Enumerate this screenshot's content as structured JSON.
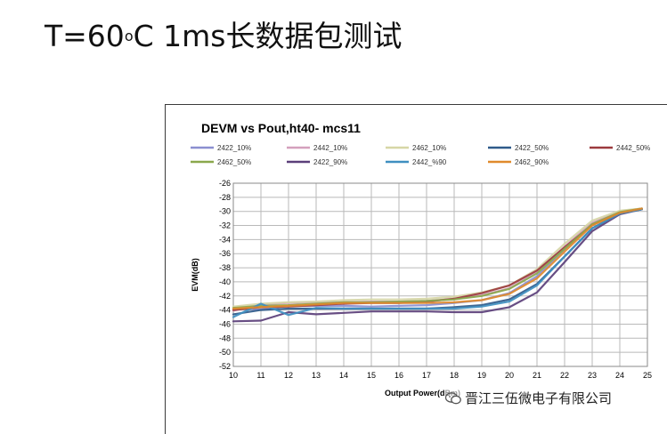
{
  "slide": {
    "title_prefix": "T=60",
    "title_sup": "o",
    "title_suffix": "C 1ms长数据包测试"
  },
  "watermark": {
    "text": "晋江三伍微电子有限公司",
    "icon": "wechat-icon"
  },
  "chart_data": {
    "type": "line",
    "title": "DEVM vs Pout,ht40- mcs11",
    "xlabel": "Output  Power(dBm)",
    "ylabel": "EVM(dB)",
    "xlim": [
      10,
      25
    ],
    "ylim": [
      -52,
      -26
    ],
    "grid": true,
    "legend_position": "top",
    "x_ticks": [
      "10",
      "11",
      "12",
      "13",
      "14",
      "15",
      "16",
      "17",
      "18",
      "19",
      "20",
      "21",
      "22",
      "23",
      "24",
      "25"
    ],
    "y_ticks": [
      "-26",
      "-28",
      "-30",
      "-32",
      "-34",
      "-36",
      "-38",
      "-40",
      "-42",
      "-44",
      "-46",
      "-48",
      "-50",
      "-52"
    ],
    "x": [
      10,
      11,
      12,
      13,
      14,
      15,
      16,
      17,
      18,
      19,
      20,
      21,
      22,
      23,
      24,
      24.8
    ],
    "series": [
      {
        "name": "2422_10%",
        "color": "#8b8fd0",
        "values": [
          -43.8,
          -43.9,
          -43.4,
          -43.4,
          -43.4,
          -43.5,
          -43.4,
          -43.3,
          -43.0,
          -42.6,
          -41.6,
          -39.2,
          -35.4,
          -31.8,
          -30.1,
          -29.6
        ]
      },
      {
        "name": "2442_10%",
        "color": "#d4a0bd",
        "values": [
          -44.1,
          -43.2,
          -43.0,
          -42.9,
          -42.9,
          -42.8,
          -42.8,
          -42.7,
          -42.4,
          -41.9,
          -40.9,
          -38.6,
          -35.0,
          -31.6,
          -30.0,
          -29.6
        ]
      },
      {
        "name": "2462_10%",
        "color": "#d6d6a6",
        "values": [
          -43.5,
          -43.1,
          -42.9,
          -42.8,
          -42.6,
          -42.5,
          -42.5,
          -42.4,
          -42.1,
          -41.5,
          -40.5,
          -38.2,
          -34.6,
          -31.3,
          -29.9,
          -29.6
        ]
      },
      {
        "name": "2422_50%",
        "color": "#2f5a8a",
        "values": [
          -44.6,
          -44.0,
          -43.8,
          -43.8,
          -43.8,
          -43.8,
          -43.8,
          -43.8,
          -43.6,
          -43.3,
          -42.5,
          -40.3,
          -36.4,
          -32.4,
          -30.3,
          -29.7
        ]
      },
      {
        "name": "2442_50%",
        "color": "#9c3a3e",
        "values": [
          -44.0,
          -43.6,
          -43.5,
          -43.3,
          -43.1,
          -43.0,
          -43.0,
          -42.8,
          -42.4,
          -41.6,
          -40.5,
          -38.4,
          -35.1,
          -31.9,
          -30.2,
          -29.7
        ]
      },
      {
        "name": "2462_50%",
        "color": "#8aa84c",
        "values": [
          -43.7,
          -43.4,
          -43.3,
          -43.1,
          -42.9,
          -42.9,
          -42.8,
          -42.7,
          -42.5,
          -42.0,
          -41.0,
          -38.8,
          -35.3,
          -31.8,
          -30.1,
          -29.6
        ]
      },
      {
        "name": "2422_90%",
        "color": "#5b3f7a",
        "values": [
          -45.6,
          -45.5,
          -44.3,
          -44.6,
          -44.4,
          -44.2,
          -44.2,
          -44.2,
          -44.3,
          -44.3,
          -43.6,
          -41.5,
          -37.2,
          -32.8,
          -30.4,
          -29.7
        ]
      },
      {
        "name": "2442_%90",
        "color": "#3f8fc0",
        "values": [
          -45.0,
          -43.1,
          -44.7,
          -43.7,
          -43.8,
          -43.8,
          -43.8,
          -43.8,
          -43.8,
          -43.5,
          -42.8,
          -40.5,
          -36.4,
          -32.4,
          -30.3,
          -29.7
        ]
      },
      {
        "name": "2462_90%",
        "color": "#e08a2c",
        "values": [
          -43.8,
          -43.6,
          -43.4,
          -43.2,
          -43.0,
          -43.0,
          -43.0,
          -43.0,
          -42.9,
          -42.6,
          -41.7,
          -39.5,
          -35.7,
          -32.0,
          -30.2,
          -29.6
        ]
      }
    ]
  }
}
